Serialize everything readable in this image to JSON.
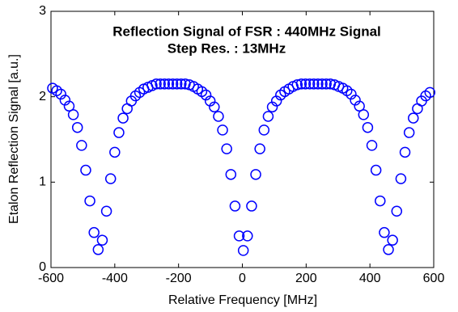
{
  "chart_data": {
    "type": "scatter",
    "title": "Reflection Signal of FSR : 440MHz Signal",
    "subtitle": "Step Res. : 13MHz",
    "x_label": "Relative Frequency [MHz]",
    "y_label": "Etalon Reflection Signal [a.u.]",
    "xlim": [
      -600,
      600
    ],
    "xticks": [
      -600,
      -400,
      -200,
      0,
      200,
      400,
      600
    ],
    "ylim": [
      0,
      3
    ],
    "yticks": [
      0,
      1,
      2,
      3
    ],
    "grid": false,
    "color": "#0000ff",
    "x": [
      -595,
      -582,
      -569,
      -556,
      -543,
      -530,
      -517,
      -504,
      -491,
      -478,
      -465,
      -452,
      -439,
      -426,
      -413,
      -400,
      -387,
      -374,
      -361,
      -348,
      -335,
      -322,
      -309,
      -296,
      -283,
      -270,
      -257,
      -244,
      -231,
      -218,
      -205,
      -192,
      -179,
      -166,
      -153,
      -140,
      -127,
      -114,
      -101,
      -88,
      -75,
      -62,
      -49,
      -36,
      -23,
      -10,
      3,
      16,
      29,
      42,
      55,
      68,
      81,
      94,
      107,
      120,
      133,
      146,
      159,
      172,
      185,
      198,
      211,
      224,
      237,
      250,
      263,
      276,
      289,
      302,
      315,
      328,
      341,
      354,
      367,
      380,
      393,
      406,
      419,
      432,
      445,
      458,
      471,
      484,
      497,
      510,
      523,
      536,
      549,
      562,
      575,
      588
    ],
    "values": [
      2.1,
      2.07,
      2.03,
      1.96,
      1.89,
      1.79,
      1.64,
      1.43,
      1.14,
      0.78,
      0.41,
      0.21,
      0.32,
      0.66,
      1.04,
      1.35,
      1.58,
      1.75,
      1.86,
      1.95,
      2.01,
      2.05,
      2.09,
      2.11,
      2.13,
      2.15,
      2.15,
      2.15,
      2.15,
      2.15,
      2.15,
      2.15,
      2.15,
      2.14,
      2.12,
      2.09,
      2.06,
      2.02,
      1.95,
      1.88,
      1.77,
      1.61,
      1.39,
      1.09,
      0.72,
      0.37,
      0.2,
      0.37,
      0.72,
      1.09,
      1.39,
      1.61,
      1.77,
      1.88,
      1.95,
      2.02,
      2.06,
      2.09,
      2.12,
      2.14,
      2.15,
      2.15,
      2.15,
      2.15,
      2.15,
      2.15,
      2.15,
      2.15,
      2.14,
      2.12,
      2.1,
      2.07,
      2.03,
      1.96,
      1.89,
      1.79,
      1.64,
      1.43,
      1.14,
      0.78,
      0.41,
      0.21,
      0.32,
      0.66,
      1.04,
      1.35,
      1.58,
      1.75,
      1.86,
      1.95,
      2.01,
      2.05
    ]
  }
}
